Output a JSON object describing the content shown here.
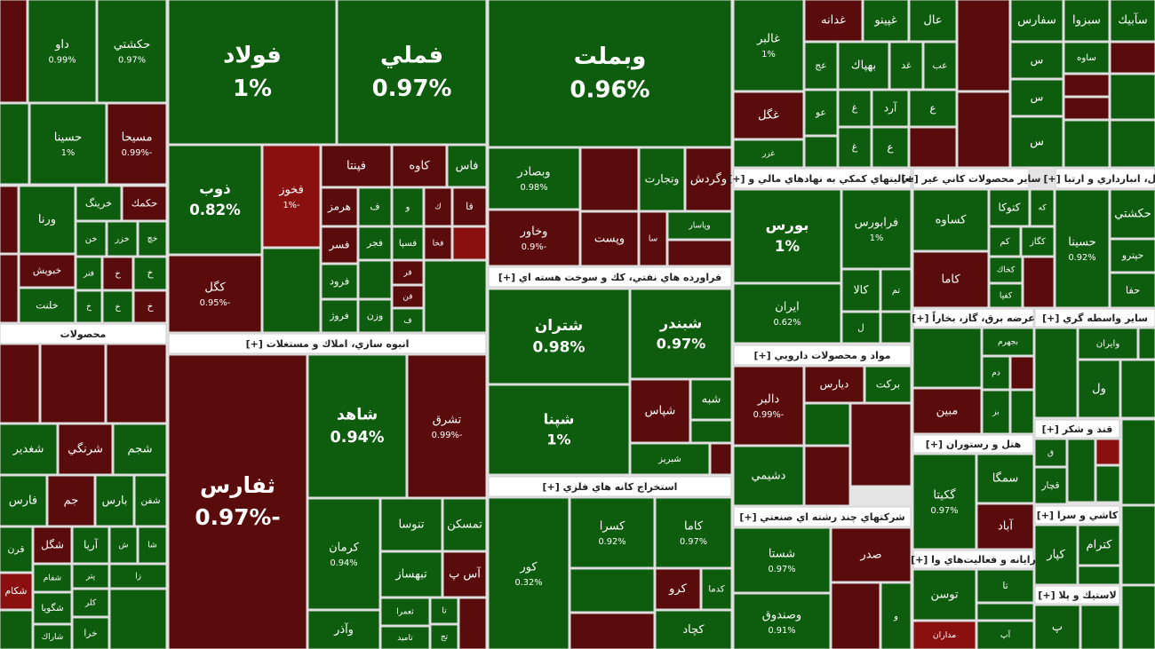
{
  "chart_data": {
    "type": "treemap",
    "tiles": [
      {
        "color": "#5a0b0b"
      },
      {
        "name": "داو",
        "value": 0.99,
        "value_label": "0.99%",
        "color": "#0e5c0e"
      },
      {
        "name": "حكشتي",
        "value": 0.97,
        "value_label": "0.97%",
        "color": "#0e5c0e"
      },
      {
        "color": "#0e5c0e"
      },
      {
        "name": "حسينا",
        "value": 1,
        "value_label": "1%",
        "color": "#0e5c0e"
      },
      {
        "name": "مسيحا",
        "value": -0.99,
        "value_label": "-0.99%",
        "color": "#5a0b0b"
      },
      {
        "color": "#5a0b0b"
      },
      {
        "name": "ورنا",
        "color": "#0e5c0e"
      },
      {
        "name": "خرينگ",
        "color": "#0e5c0e"
      },
      {
        "name": "حكمك",
        "color": "#5a0b0b"
      },
      {
        "name": "خن",
        "color": "#0e5c0e"
      },
      {
        "name": "خزر",
        "color": "#0e5c0e"
      },
      {
        "name": "خچ",
        "color": "#0e5c0e"
      },
      {
        "name": "خبويش",
        "color": "#5a0b0b"
      },
      {
        "name": "فنر",
        "color": "#0e5c0e"
      },
      {
        "name": "خ",
        "color": "#5a0b0b"
      },
      {
        "name": "خ",
        "color": "#0e5c0e"
      },
      {
        "name": "خلنت",
        "color": "#0e5c0e"
      },
      {
        "color": "#5a0b0b"
      },
      {
        "name": "خ",
        "color": "#0e5c0e"
      },
      {
        "name": "خ",
        "color": "#0e5c0e"
      },
      {
        "name": "خ",
        "color": "#5a0b0b"
      },
      {
        "color": "#5a0b0b"
      },
      {
        "color": "#5a0b0b"
      },
      {
        "color": "#5a0b0b"
      },
      {
        "name": "شغدير",
        "color": "#0e5c0e"
      },
      {
        "name": "شرنگي",
        "color": "#5a0b0b"
      },
      {
        "name": "شجم",
        "color": "#0e5c0e"
      },
      {
        "name": "فارس",
        "color": "#0e5c0e"
      },
      {
        "name": "جم",
        "color": "#5a0b0b"
      },
      {
        "name": "بارس",
        "color": "#0e5c0e"
      },
      {
        "name": "شفن",
        "color": "#0e5c0e"
      },
      {
        "name": "قرن",
        "color": "#0e5c0e"
      },
      {
        "name": "شگل",
        "color": "#5a0b0b"
      },
      {
        "name": "آريا",
        "color": "#0e5c0e"
      },
      {
        "name": "ش",
        "color": "#0e5c0e"
      },
      {
        "name": "شا",
        "color": "#0e5c0e"
      },
      {
        "name": "شفام",
        "color": "#0e5c0e"
      },
      {
        "name": "پتر",
        "color": "#0e5c0e"
      },
      {
        "name": "زا",
        "color": "#0e5c0e"
      },
      {
        "name": "شكام",
        "color": "#8a1010"
      },
      {
        "name": "شگويا",
        "color": "#0e5c0e"
      },
      {
        "name": "كلر",
        "color": "#0e5c0e"
      },
      {
        "name": "شاراك",
        "color": "#0e5c0e"
      },
      {
        "color": "#0e5c0e"
      },
      {
        "name": "خرا",
        "color": "#0e5c0e"
      },
      {
        "color": "#0e5c0e"
      },
      {
        "name": "فولاد",
        "value": 1,
        "value_label": "1%",
        "color": "#0e5c0e"
      },
      {
        "name": "فملي",
        "value": 0.97,
        "value_label": "0.97%",
        "color": "#0e5c0e"
      },
      {
        "name": "ذوب",
        "value": 0.82,
        "value_label": "0.82%",
        "color": "#0e5c0e"
      },
      {
        "name": "كگل",
        "value": -0.95,
        "value_label": "-0.95%",
        "color": "#5a0b0b"
      },
      {
        "name": "فخوز",
        "value": -1,
        "value_label": "-1%",
        "color": "#8a1010"
      },
      {
        "color": "#0e5c0e"
      },
      {
        "name": "فپنتا",
        "color": "#5a0b0b"
      },
      {
        "name": "كاوه",
        "color": "#5a0b0b"
      },
      {
        "name": "فاس",
        "color": "#0e5c0e"
      },
      {
        "name": "هرمز",
        "color": "#5a0b0b"
      },
      {
        "name": "ف",
        "color": "#0e5c0e"
      },
      {
        "name": "و",
        "color": "#0e5c0e"
      },
      {
        "name": "ك",
        "color": "#5a0b0b"
      },
      {
        "name": "فا",
        "color": "#5a0b0b"
      },
      {
        "name": "فسر",
        "color": "#5a0b0b"
      },
      {
        "name": "فجر",
        "color": "#0e5c0e"
      },
      {
        "name": "فسپا",
        "color": "#0e5c0e"
      },
      {
        "name": "فخا",
        "color": "#5a0b0b"
      },
      {
        "color": "#8a1010"
      },
      {
        "name": "فرود",
        "color": "#0e5c0e"
      },
      {
        "name": "فروژ",
        "color": "#0e5c0e"
      },
      {
        "name": "وزن",
        "color": "#0e5c0e"
      },
      {
        "name": "فر",
        "color": "#5a0b0b"
      },
      {
        "name": "فن",
        "color": "#5a0b0b"
      },
      {
        "name": "ف",
        "color": "#0e5c0e"
      },
      {
        "color": "#0e5c0e"
      },
      {
        "color": "#0e5c0e"
      },
      {
        "name": "ثفارس",
        "value": -0.97,
        "value_label": "-0.97%",
        "color": "#5a0b0b"
      },
      {
        "name": "شاهد",
        "value": 0.94,
        "value_label": "0.94%",
        "color": "#0e5c0e"
      },
      {
        "name": "تشرق",
        "value": -0.99,
        "value_label": "-0.99%",
        "color": "#5a0b0b"
      },
      {
        "name": "كرمان",
        "value": 0.94,
        "value_label": "0.94%",
        "color": "#0e5c0e"
      },
      {
        "name": "وآذر",
        "color": "#0e5c0e"
      },
      {
        "name": "تنوسا",
        "color": "#0e5c0e"
      },
      {
        "name": "تمسكن",
        "color": "#0e5c0e"
      },
      {
        "name": "تبهساز",
        "color": "#0e5c0e"
      },
      {
        "name": "آس پ",
        "color": "#5a0b0b"
      },
      {
        "name": "ثعمرا",
        "color": "#0e5c0e"
      },
      {
        "name": "تامید",
        "color": "#0e5c0e"
      },
      {
        "name": "تا",
        "color": "#0e5c0e"
      },
      {
        "name": "تج",
        "color": "#0e5c0e"
      },
      {
        "color": "#5a0b0b"
      },
      {
        "name": "وبملت",
        "value": 0.96,
        "value_label": "0.96%",
        "color": "#0e5c0e"
      },
      {
        "name": "وبصادر",
        "value": 0.98,
        "value_label": "0.98%",
        "color": "#0e5c0e"
      },
      {
        "color": "#5a0b0b"
      },
      {
        "name": "وتجارت",
        "color": "#0e5c0e"
      },
      {
        "name": "وگردش",
        "color": "#5a0b0b"
      },
      {
        "name": "وخاور",
        "value": -0.9,
        "value_label": "-0.9%",
        "color": "#5a0b0b"
      },
      {
        "name": "وپست",
        "color": "#5a0b0b"
      },
      {
        "name": "سا",
        "color": "#5a0b0b"
      },
      {
        "name": "وپاسار",
        "color": "#0e5c0e"
      },
      {
        "color": "#5a0b0b"
      },
      {
        "name": "شتران",
        "value": 0.98,
        "value_label": "0.98%",
        "color": "#0e5c0e"
      },
      {
        "name": "شبندر",
        "value": 0.97,
        "value_label": "0.97%",
        "color": "#0e5c0e"
      },
      {
        "name": "شپنا",
        "value": 1,
        "value_label": "1%",
        "color": "#0e5c0e"
      },
      {
        "name": "شپاس",
        "color": "#5a0b0b"
      },
      {
        "name": "شبه",
        "color": "#0e5c0e"
      },
      {
        "color": "#0e5c0e"
      },
      {
        "name": "شبريز",
        "color": "#0e5c0e"
      },
      {
        "color": "#5a0b0b"
      },
      {
        "name": "كور",
        "value": 0.32,
        "value_label": "0.32%",
        "color": "#0e5c0e"
      },
      {
        "name": "كسرا",
        "value": 0.92,
        "value_label": "0.92%",
        "color": "#0e5c0e"
      },
      {
        "name": "كاما",
        "value": 0.97,
        "value_label": "0.97%",
        "color": "#0e5c0e"
      },
      {
        "color": "#0e5c0e"
      },
      {
        "name": "كرو",
        "color": "#5a0b0b"
      },
      {
        "name": "كدما",
        "color": "#0e5c0e"
      },
      {
        "color": "#5a0b0b"
      },
      {
        "name": "كچاد",
        "color": "#0e5c0e"
      },
      {
        "name": "غالبر",
        "value": 1,
        "value_label": "1%",
        "color": "#0e5c0e"
      },
      {
        "name": "غدانه",
        "color": "#5a0b0b"
      },
      {
        "name": "غپينو",
        "color": "#0e5c0e"
      },
      {
        "name": "عال",
        "color": "#0e5c0e"
      },
      {
        "name": "عج",
        "color": "#0e5c0e"
      },
      {
        "name": "بهپاك",
        "color": "#0e5c0e"
      },
      {
        "name": "غد",
        "color": "#0e5c0e"
      },
      {
        "name": "عب",
        "color": "#0e5c0e"
      },
      {
        "name": "غگل",
        "color": "#5a0b0b"
      },
      {
        "name": "غزر",
        "color": "#0e5c0e"
      },
      {
        "name": "عو",
        "color": "#0e5c0e"
      },
      {
        "name": "غ",
        "color": "#0e5c0e"
      },
      {
        "name": "آرد",
        "color": "#0e5c0e"
      },
      {
        "name": "ع",
        "color": "#0e5c0e"
      },
      {
        "color": "#0e5c0e"
      },
      {
        "name": "غ",
        "color": "#0e5c0e"
      },
      {
        "name": "ع",
        "color": "#0e5c0e"
      },
      {
        "color": "#5a0b0b"
      },
      {
        "color": "#5a0b0b"
      },
      {
        "color": "#5a0b0b"
      },
      {
        "name": "سفارس",
        "color": "#0e5c0e"
      },
      {
        "name": "سبزوا",
        "color": "#0e5c0e"
      },
      {
        "name": "سآبيك",
        "color": "#0e5c0e"
      },
      {
        "name": "س",
        "color": "#0e5c0e"
      },
      {
        "name": "ساوه",
        "color": "#0e5c0e"
      },
      {
        "color": "#5a0b0b"
      },
      {
        "name": "س",
        "color": "#0e5c0e"
      },
      {
        "color": "#5a0b0b"
      },
      {
        "color": "#0e5c0e"
      },
      {
        "name": "س",
        "color": "#0e5c0e"
      },
      {
        "color": "#5a0b0b"
      },
      {
        "color": "#0e5c0e"
      },
      {
        "color": "#0e5c0e"
      },
      {
        "name": "بورس",
        "value": 1,
        "value_label": "1%",
        "color": "#0e5c0e"
      },
      {
        "name": "فرابورس",
        "value": 1,
        "value_label": "1%",
        "color": "#0e5c0e"
      },
      {
        "name": "ايران",
        "value": 0.62,
        "value_label": "0.62%",
        "color": "#0e5c0e"
      },
      {
        "name": "كالا",
        "color": "#0e5c0e"
      },
      {
        "name": "تم",
        "color": "#0e5c0e"
      },
      {
        "name": "ل",
        "color": "#0e5c0e"
      },
      {
        "color": "#0e5c0e"
      },
      {
        "name": "دالبر",
        "value": -0.99,
        "value_label": "-0.99%",
        "color": "#5a0b0b"
      },
      {
        "name": "ديارس",
        "color": "#5a0b0b"
      },
      {
        "name": "بركت",
        "color": "#0e5c0e"
      },
      {
        "color": "#0e5c0e"
      },
      {
        "color": "#5a0b0b"
      },
      {
        "name": "دشيمي",
        "color": "#0e5c0e"
      },
      {
        "color": "#5a0b0b"
      },
      {
        "name": "شستا",
        "value": 0.97,
        "value_label": "0.97%",
        "color": "#0e5c0e"
      },
      {
        "name": "صدر",
        "color": "#5a0b0b"
      },
      {
        "name": "وصندوق",
        "value": 0.91,
        "value_label": "0.91%",
        "color": "#0e5c0e"
      },
      {
        "color": "#5a0b0b"
      },
      {
        "name": "و",
        "color": "#0e5c0e"
      },
      {
        "name": "كساوه",
        "color": "#0e5c0e"
      },
      {
        "name": "كتوكا",
        "color": "#0e5c0e"
      },
      {
        "name": "كه",
        "color": "#0e5c0e"
      },
      {
        "name": "كم",
        "color": "#0e5c0e"
      },
      {
        "name": "كگاز",
        "color": "#0e5c0e"
      },
      {
        "name": "كاما",
        "color": "#5a0b0b"
      },
      {
        "name": "كخاك",
        "color": "#0e5c0e"
      },
      {
        "name": "كفپا",
        "color": "#0e5c0e"
      },
      {
        "color": "#5a0b0b"
      },
      {
        "name": "حسينا",
        "value": 0.92,
        "value_label": "0.92%",
        "color": "#0e5c0e"
      },
      {
        "name": "حكشتي",
        "color": "#0e5c0e"
      },
      {
        "name": "حپترو",
        "color": "#0e5c0e"
      },
      {
        "name": "حفا",
        "color": "#0e5c0e"
      },
      {
        "color": "#0e5c0e"
      },
      {
        "name": "بجهرم",
        "color": "#0e5c0e"
      },
      {
        "name": "دم",
        "color": "#0e5c0e"
      },
      {
        "color": "#5a0b0b"
      },
      {
        "name": "بز",
        "color": "#0e5c0e"
      },
      {
        "color": "#0e5c0e"
      },
      {
        "name": "مبين",
        "color": "#5a0b0b"
      },
      {
        "color": "#0e5c0e"
      },
      {
        "name": "وايران",
        "color": "#0e5c0e"
      },
      {
        "color": "#0e5c0e"
      },
      {
        "name": "ول",
        "color": "#0e5c0e"
      },
      {
        "color": "#0e5c0e"
      },
      {
        "name": "گكيتا",
        "value": 0.97,
        "value_label": "0.97%",
        "color": "#0e5c0e"
      },
      {
        "name": "سمگا",
        "color": "#0e5c0e"
      },
      {
        "name": "آباد",
        "color": "#5a0b0b"
      },
      {
        "name": "ق",
        "color": "#0e5c0e"
      },
      {
        "name": "قچار",
        "color": "#0e5c0e"
      },
      {
        "color": "#0e5c0e"
      },
      {
        "color": "#8a1010"
      },
      {
        "color": "#0e5c0e"
      },
      {
        "color": "#0e5c0e"
      },
      {
        "name": "توسن",
        "color": "#0e5c0e"
      },
      {
        "name": "مداران",
        "color": "#8a1010"
      },
      {
        "name": "تا",
        "color": "#0e5c0e"
      },
      {
        "color": "#0e5c0e"
      },
      {
        "name": "آپ",
        "color": "#0e5c0e"
      },
      {
        "name": "كپار",
        "color": "#0e5c0e"
      },
      {
        "name": "كترام",
        "color": "#0e5c0e"
      },
      {
        "color": "#0e5c0e"
      },
      {
        "color": "#0e5c0e"
      },
      {
        "name": "پ",
        "color": "#0e5c0e"
      },
      {
        "color": "#0e5c0e"
      },
      {
        "color": "#0e5c0e"
      }
    ],
    "groups": [
      "محصولات",
      "انبوه سازي، املاك و مستغلات [+]",
      "فراورده هاي نفتي، كك و سوخت هسته اي [+]",
      "استخراج كانه هاي فلزي [+]",
      "فعاليتهاي كمكي به نهادهاي مالي و [+]",
      "مواد و محصولات دارويي [+]",
      "شركتهاي چند رشته اي صنعتي [+]",
      "ساير محصولات كاني غير [+]",
      "نقل، انبارداري و ارتبا [+]",
      "عرضه برق، گاز، بخاراً [+]",
      "ساير واسطه گري [+]",
      "هتل و رستوران [+]",
      "قند و شكر [+]",
      "رايانه و فعاليت‌هاي وا [+]",
      "كاشي و سرا [+]",
      "لاستيك و پلا [+]"
    ]
  }
}
